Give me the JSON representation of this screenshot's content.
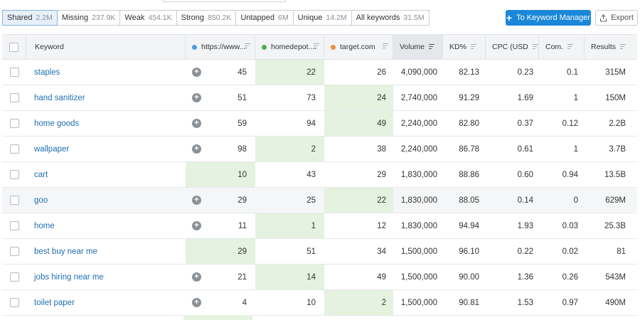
{
  "filters": [
    {
      "label": "Shared",
      "count": "2.2M"
    },
    {
      "label": "Missing",
      "count": "237.9K"
    },
    {
      "label": "Weak",
      "count": "454.1K"
    },
    {
      "label": "Strong",
      "count": "850.2K"
    },
    {
      "label": "Untapped",
      "count": "6M"
    },
    {
      "label": "Unique",
      "count": "14.2M"
    },
    {
      "label": "All keywords",
      "count": "31.5M"
    }
  ],
  "actions": {
    "keyword_manager_label": "To Keyword Manager",
    "export_label": "Export"
  },
  "colors": {
    "domain1": "#4a9ee0",
    "domain2": "#4caf50",
    "domain3": "#f08c3a",
    "highlight": "#e4f2df",
    "link": "#1f6fb3",
    "primary": "#1a87d8"
  },
  "columns": {
    "keyword": "Keyword",
    "domain1": "https://www...",
    "domain2": "homedepot....",
    "domain3": "target.com",
    "volume": "Volume",
    "kd": "KD%",
    "cpc": "CPC (USD)",
    "com": "Com.",
    "results": "Results"
  },
  "rows": [
    {
      "keyword": "staples",
      "d1": "45",
      "d2": "22",
      "d3": "26",
      "volume": "4,090,000",
      "kd": "82.13",
      "cpc": "0.23",
      "com": "0.1",
      "results": "315M",
      "best": 2
    },
    {
      "keyword": "hand sanitizer",
      "d1": "51",
      "d2": "73",
      "d3": "24",
      "volume": "2,740,000",
      "kd": "91.29",
      "cpc": "1.69",
      "com": "1",
      "results": "150M",
      "best": 3
    },
    {
      "keyword": "home goods",
      "d1": "59",
      "d2": "94",
      "d3": "49",
      "volume": "2,240,000",
      "kd": "82.80",
      "cpc": "0.37",
      "com": "0.12",
      "results": "2.2B",
      "best": 3
    },
    {
      "keyword": "wallpaper",
      "d1": "98",
      "d2": "2",
      "d3": "38",
      "volume": "2,240,000",
      "kd": "86.78",
      "cpc": "0.61",
      "com": "1",
      "results": "3.7B",
      "best": 2
    },
    {
      "keyword": "cart",
      "d1": "10",
      "d2": "43",
      "d3": "29",
      "volume": "1,830,000",
      "kd": "88.86",
      "cpc": "0.60",
      "com": "0.94",
      "results": "13.5B",
      "best": 1
    },
    {
      "keyword": "goo",
      "d1": "29",
      "d2": "25",
      "d3": "22",
      "volume": "1,830,000",
      "kd": "88.05",
      "cpc": "0.14",
      "com": "0",
      "results": "629M",
      "best": 3
    },
    {
      "keyword": "home",
      "d1": "11",
      "d2": "1",
      "d3": "12",
      "volume": "1,830,000",
      "kd": "94.94",
      "cpc": "1.93",
      "com": "0.03",
      "results": "25.3B",
      "best": 2
    },
    {
      "keyword": "best buy near me",
      "d1": "29",
      "d2": "51",
      "d3": "34",
      "volume": "1,500,000",
      "kd": "96.10",
      "cpc": "0.22",
      "com": "0.02",
      "results": "81",
      "best": 1
    },
    {
      "keyword": "jobs hiring near me",
      "d1": "21",
      "d2": "14",
      "d3": "49",
      "volume": "1,500,000",
      "kd": "90.00",
      "cpc": "1.36",
      "com": "0.26",
      "results": "543M",
      "best": 2
    },
    {
      "keyword": "toilet paper",
      "d1": "4",
      "d2": "10",
      "d3": "2",
      "volume": "1,500,000",
      "kd": "90.81",
      "cpc": "1.53",
      "com": "0.97",
      "results": "490M",
      "best": 3
    }
  ]
}
